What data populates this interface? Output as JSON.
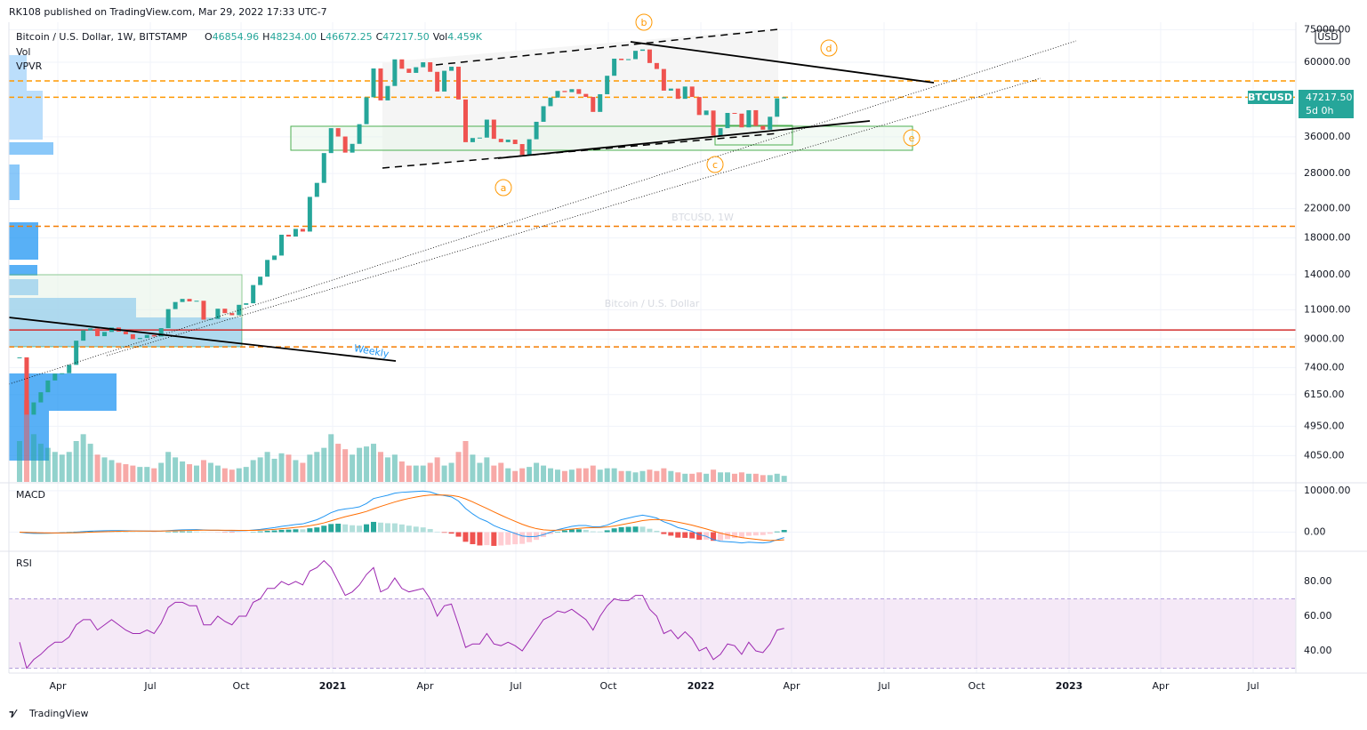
{
  "header": {
    "published": "RK108 published on TradingView.com, Mar 29, 2022 17:33 UTC-7",
    "symbol": "Bitcoin / U.S. Dollar, 1W, BITSTAMP",
    "ohlcv": [
      {
        "label": "O",
        "value": "46854.96"
      },
      {
        "label": "H",
        "value": "48234.00"
      },
      {
        "label": "L",
        "value": "46672.25"
      },
      {
        "label": "C",
        "value": "47217.50"
      },
      {
        "label": "Vol",
        "value": "4.459K"
      }
    ],
    "indicators": [
      "Vol",
      "VPVR"
    ],
    "currency": "USD"
  },
  "watermark": {
    "symbol": "BTCUSD, 1W",
    "name": "Bitcoin / U.S. Dollar"
  },
  "annotations": {
    "waves": [
      "a",
      "b",
      "c",
      "d",
      "e"
    ],
    "note": "Weekly"
  },
  "price_label": {
    "symbol": "BTCUSD",
    "price": "47217.50",
    "countdown": "5d 0h"
  },
  "footer": {
    "brand": "TradingView"
  },
  "chart_data": [
    {
      "type": "candlestick",
      "log_scale": true,
      "grid": true,
      "up_color": "#26a69a",
      "down_color": "#ef5350",
      "x_labels": [
        "Apr",
        "Jul",
        "Oct",
        "2021",
        "Apr",
        "Jul",
        "Oct",
        "2022",
        "Apr",
        "Jul",
        "Oct",
        "2023",
        "Apr",
        "Jul"
      ],
      "close": [
        7940,
        5360,
        5830,
        6250,
        6775,
        7100,
        7120,
        7540,
        8900,
        9550,
        9680,
        9180,
        9450,
        9740,
        9470,
        9300,
        9000,
        9070,
        9250,
        9160,
        9700,
        11050,
        11600,
        11850,
        11650,
        11700,
        10280,
        10330,
        11080,
        10750,
        10600,
        11380,
        11500,
        13030,
        13800,
        15480,
        15950,
        18400,
        18170,
        19150,
        18800,
        23850,
        26250,
        32200,
        38200,
        36070,
        32300,
        34300,
        39250,
        47200,
        57500,
        46200,
        51000,
        61200,
        57400,
        55800,
        58000,
        60000,
        56200,
        49100,
        56600,
        58200,
        46500,
        34700,
        35700,
        35800,
        40500,
        35500,
        34700,
        35300,
        34250,
        31800,
        35400,
        39900,
        44400,
        47100,
        49300,
        48900,
        49900,
        48300,
        47300,
        42700,
        48200,
        54700,
        61500,
        60900,
        61300,
        64900,
        65500,
        59700,
        57300,
        49400,
        50100,
        46700,
        50800,
        47300,
        41800,
        43100,
        36300,
        38200,
        42400,
        42200,
        38400,
        43200,
        38800,
        37800,
        41300,
        46850,
        47217.5
      ],
      "volume": [
        30,
        60,
        35,
        28,
        25,
        22,
        20,
        22,
        30,
        35,
        28,
        20,
        18,
        16,
        14,
        13,
        12,
        11,
        11,
        10,
        14,
        22,
        18,
        15,
        13,
        12,
        16,
        14,
        12,
        10,
        9,
        10,
        11,
        16,
        18,
        22,
        17,
        21,
        20,
        16,
        14,
        20,
        22,
        25,
        35,
        28,
        24,
        20,
        25,
        26,
        28,
        22,
        18,
        20,
        15,
        12,
        12,
        12,
        14,
        18,
        12,
        14,
        22,
        30,
        20,
        14,
        18,
        12,
        14,
        10,
        8,
        10,
        11,
        14,
        12,
        10,
        9,
        8,
        9,
        10,
        10,
        12,
        9,
        10,
        10,
        8,
        8,
        7,
        8,
        9,
        8,
        10,
        8,
        7,
        6,
        6,
        7,
        6,
        9,
        7,
        7,
        6,
        7,
        6,
        6,
        5,
        5,
        6,
        4.459
      ],
      "levels": [
        {
          "value": 52800,
          "color": "#ff9800",
          "dash": true
        },
        {
          "value": 47217.5,
          "color": "#ff9800",
          "dash": true
        },
        {
          "value": 19500,
          "color": "#f57c00",
          "dash": true
        },
        {
          "value": 9580,
          "color": "#d32f2f",
          "dash": false
        },
        {
          "value": 8530,
          "color": "#f57c00",
          "dash": true
        }
      ],
      "ylim": [
        3380,
        78950
      ],
      "yticks": [
        {
          "value": 75000,
          "label": "75000.00"
        },
        {
          "value": 60000,
          "label": "60000.00"
        },
        {
          "value": 36000,
          "label": "36000.00"
        },
        {
          "value": 28000,
          "label": "28000.00"
        },
        {
          "value": 22000,
          "label": "22000.00"
        },
        {
          "value": 18000,
          "label": "18000.00"
        },
        {
          "value": 14000,
          "label": "14000.00"
        },
        {
          "value": 11000,
          "label": "11000.00"
        },
        {
          "value": 9000,
          "label": "9000.00"
        },
        {
          "value": 7400,
          "label": "7400.00"
        },
        {
          "value": 6150,
          "label": "6150.00"
        },
        {
          "value": 4950,
          "label": "4950.00"
        },
        {
          "value": 4050,
          "label": "4050.00"
        }
      ]
    },
    {
      "type": "macd",
      "title": "MACD",
      "series": [
        {
          "name": "MACD",
          "color": "#2196f3",
          "values": [
            0,
            -200,
            -300,
            -300,
            -250,
            -200,
            -150,
            -100,
            0,
            150,
            250,
            300,
            350,
            380,
            380,
            360,
            330,
            300,
            280,
            250,
            270,
            380,
            480,
            560,
            600,
            620,
            540,
            470,
            450,
            400,
            360,
            360,
            370,
            520,
            680,
            900,
            1100,
            1400,
            1600,
            1850,
            2000,
            2500,
            3000,
            3800,
            4700,
            5300,
            5600,
            5800,
            6100,
            6900,
            8100,
            8500,
            8900,
            9400,
            9600,
            9700,
            9800,
            9900,
            9700,
            9100,
            8800,
            8500,
            7500,
            5700,
            4400,
            3300,
            2600,
            1600,
            900,
            300,
            -300,
            -900,
            -1100,
            -1000,
            -600,
            0,
            600,
            1000,
            1400,
            1600,
            1600,
            1300,
            1300,
            1700,
            2400,
            3000,
            3400,
            3800,
            4100,
            3800,
            3400,
            2500,
            1900,
            1100,
            700,
            200,
            -600,
            -1000,
            -1800,
            -2200,
            -2300,
            -2400,
            -2600,
            -2400,
            -2500,
            -2600,
            -2400,
            -1800,
            -1300
          ]
        },
        {
          "name": "Signal",
          "color": "#ff6d00",
          "values": [
            0,
            -50,
            -100,
            -150,
            -170,
            -180,
            -175,
            -160,
            -130,
            -70,
            0,
            60,
            120,
            170,
            210,
            240,
            260,
            270,
            270,
            270,
            270,
            290,
            330,
            380,
            420,
            460,
            480,
            480,
            480,
            470,
            450,
            430,
            420,
            440,
            490,
            570,
            680,
            830,
            980,
            1150,
            1320,
            1560,
            1850,
            2240,
            2730,
            3250,
            3720,
            4130,
            4530,
            5000,
            5620,
            6200,
            6740,
            7270,
            7740,
            8130,
            8460,
            8750,
            8940,
            8980,
            8940,
            8850,
            8580,
            8010,
            7290,
            6500,
            5720,
            4900,
            4100,
            3340,
            2610,
            1910,
            1310,
            850,
            560,
            450,
            480,
            580,
            740,
            910,
            1050,
            1100,
            1140,
            1250,
            1480,
            1790,
            2110,
            2450,
            2780,
            2980,
            3060,
            2950,
            2740,
            2410,
            2070,
            1700,
            1240,
            790,
            270,
            -220,
            -640,
            -990,
            -1310,
            -1530,
            -1720,
            -1900,
            -2000,
            -1960,
            -1830
          ]
        }
      ],
      "ylim": [
        -4170,
        11460
      ],
      "yticks": [
        {
          "value": 10000,
          "label": "10000.00"
        },
        {
          "value": 0,
          "label": "0.00"
        }
      ]
    },
    {
      "type": "rsi",
      "title": "RSI",
      "color": "#9c27b0",
      "band": [
        30,
        70
      ],
      "values": [
        45,
        30,
        35,
        38,
        42,
        45,
        45,
        48,
        55,
        58,
        58,
        52,
        55,
        58,
        55,
        52,
        50,
        50,
        52,
        50,
        56,
        65,
        68,
        68,
        66,
        66,
        55,
        55,
        60,
        57,
        55,
        60,
        60,
        68,
        70,
        76,
        76,
        80,
        78,
        80,
        78,
        86,
        88,
        92,
        88,
        80,
        72,
        74,
        78,
        84,
        88,
        74,
        76,
        82,
        76,
        74,
        75,
        76,
        70,
        60,
        66,
        67,
        55,
        42,
        44,
        44,
        50,
        44,
        43,
        45,
        43,
        40,
        46,
        52,
        58,
        60,
        63,
        62,
        64,
        61,
        58,
        52,
        60,
        66,
        70,
        69,
        69,
        72,
        72,
        64,
        60,
        50,
        52,
        47,
        51,
        47,
        40,
        42,
        35,
        38,
        44,
        43,
        38,
        45,
        40,
        39,
        44,
        52,
        53
      ],
      "ylim": [
        27.2,
        97.4
      ],
      "yticks": [
        {
          "value": 80,
          "label": "80.00"
        },
        {
          "value": 60,
          "label": "60.00"
        },
        {
          "value": 40,
          "label": "40.00"
        }
      ]
    }
  ]
}
